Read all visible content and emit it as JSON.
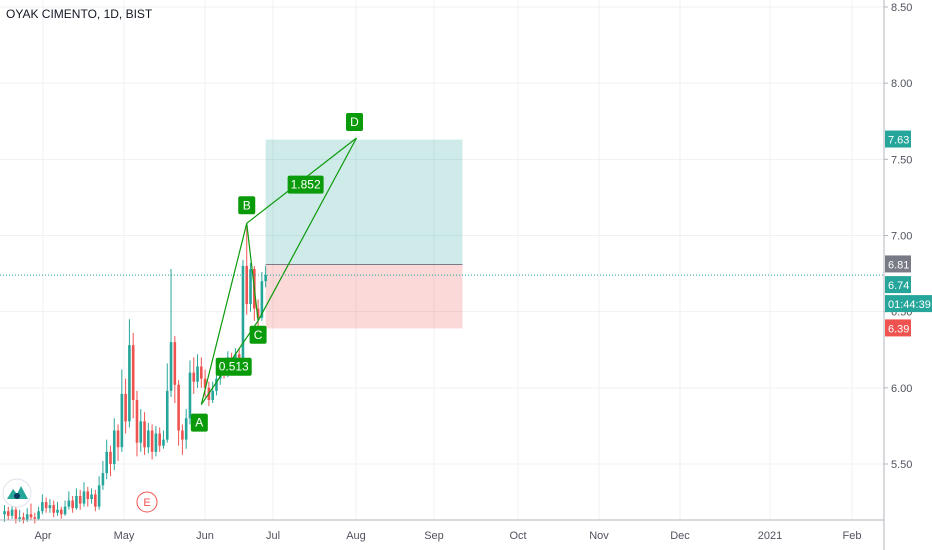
{
  "header": {
    "symbol_label": "OYAK CIMENTO, 1D, BIST"
  },
  "colors": {
    "up": "#26a69a",
    "down": "#ef5350",
    "grid": "#eef0f3",
    "axis_text": "#50535e",
    "pattern": "#0b9a0b",
    "profit_zone": "rgba(38,166,154,0.22)",
    "loss_zone": "rgba(239,83,80,0.22)",
    "last_line": "#26a69a",
    "entry_tag": "#787b86",
    "target_tag": "#26a69a",
    "stop_tag": "#ef5350",
    "timer_tag": "#26a69a"
  },
  "chart_data": {
    "type": "candlestick",
    "x_ticks": [
      "Apr",
      "May",
      "Jun",
      "Jul",
      "Aug",
      "Sep",
      "Oct",
      "Nov",
      "Dec",
      "2021",
      "Feb"
    ],
    "y_ticks": [
      "8.50",
      "8.00",
      "7.50",
      "7.00",
      "6.50",
      "6.00",
      "5.50"
    ],
    "ylim": [
      5.1,
      8.55
    ],
    "candles": [
      {
        "o": 5.17,
        "c": 5.19,
        "h": 5.23,
        "l": 5.12
      },
      {
        "o": 5.19,
        "c": 5.16,
        "h": 5.22,
        "l": 5.13
      },
      {
        "o": 5.16,
        "c": 5.2,
        "h": 5.25,
        "l": 5.14
      },
      {
        "o": 5.2,
        "c": 5.14,
        "h": 5.22,
        "l": 5.11
      },
      {
        "o": 5.14,
        "c": 5.15,
        "h": 5.2,
        "l": 5.12
      },
      {
        "o": 5.15,
        "c": 5.13,
        "h": 5.18,
        "l": 5.11
      },
      {
        "o": 5.13,
        "c": 5.17,
        "h": 5.21,
        "l": 5.12
      },
      {
        "o": 5.17,
        "c": 5.15,
        "h": 5.24,
        "l": 5.13
      },
      {
        "o": 5.15,
        "c": 5.14,
        "h": 5.18,
        "l": 5.11
      },
      {
        "o": 5.14,
        "c": 5.19,
        "h": 5.22,
        "l": 5.13
      },
      {
        "o": 5.19,
        "c": 5.25,
        "h": 5.3,
        "l": 5.17
      },
      {
        "o": 5.25,
        "c": 5.21,
        "h": 5.28,
        "l": 5.18
      },
      {
        "o": 5.21,
        "c": 5.23,
        "h": 5.27,
        "l": 5.18
      },
      {
        "o": 5.23,
        "c": 5.18,
        "h": 5.26,
        "l": 5.15
      },
      {
        "o": 5.18,
        "c": 5.2,
        "h": 5.25,
        "l": 5.16
      },
      {
        "o": 5.2,
        "c": 5.17,
        "h": 5.22,
        "l": 5.14
      },
      {
        "o": 5.17,
        "c": 5.22,
        "h": 5.26,
        "l": 5.16
      },
      {
        "o": 5.22,
        "c": 5.26,
        "h": 5.32,
        "l": 5.2
      },
      {
        "o": 5.26,
        "c": 5.21,
        "h": 5.29,
        "l": 5.18
      },
      {
        "o": 5.21,
        "c": 5.29,
        "h": 5.34,
        "l": 5.2
      },
      {
        "o": 5.29,
        "c": 5.24,
        "h": 5.33,
        "l": 5.2
      },
      {
        "o": 5.24,
        "c": 5.32,
        "h": 5.38,
        "l": 5.22
      },
      {
        "o": 5.32,
        "c": 5.27,
        "h": 5.35,
        "l": 5.22
      },
      {
        "o": 5.27,
        "c": 5.3,
        "h": 5.34,
        "l": 5.24
      },
      {
        "o": 5.3,
        "c": 5.22,
        "h": 5.33,
        "l": 5.19
      },
      {
        "o": 5.22,
        "c": 5.36,
        "h": 5.42,
        "l": 5.2
      },
      {
        "o": 5.36,
        "c": 5.44,
        "h": 5.52,
        "l": 5.33
      },
      {
        "o": 5.44,
        "c": 5.58,
        "h": 5.66,
        "l": 5.4
      },
      {
        "o": 5.58,
        "c": 5.5,
        "h": 5.62,
        "l": 5.42
      },
      {
        "o": 5.5,
        "c": 5.72,
        "h": 5.8,
        "l": 5.46
      },
      {
        "o": 5.72,
        "c": 5.61,
        "h": 5.76,
        "l": 5.52
      },
      {
        "o": 5.61,
        "c": 5.96,
        "h": 6.12,
        "l": 5.58
      },
      {
        "o": 5.96,
        "c": 5.78,
        "h": 6.06,
        "l": 5.7
      },
      {
        "o": 5.78,
        "c": 6.28,
        "h": 6.45,
        "l": 5.74
      },
      {
        "o": 6.28,
        "c": 5.92,
        "h": 6.36,
        "l": 5.8
      },
      {
        "o": 5.92,
        "c": 5.64,
        "h": 5.98,
        "l": 5.55
      },
      {
        "o": 5.64,
        "c": 5.78,
        "h": 5.86,
        "l": 5.58
      },
      {
        "o": 5.78,
        "c": 5.61,
        "h": 5.84,
        "l": 5.56
      },
      {
        "o": 5.61,
        "c": 5.72,
        "h": 5.77,
        "l": 5.57
      },
      {
        "o": 5.72,
        "c": 5.58,
        "h": 5.76,
        "l": 5.53
      },
      {
        "o": 5.58,
        "c": 5.7,
        "h": 5.75,
        "l": 5.55
      },
      {
        "o": 5.7,
        "c": 5.62,
        "h": 5.74,
        "l": 5.58
      },
      {
        "o": 5.62,
        "c": 5.66,
        "h": 5.72,
        "l": 5.6
      },
      {
        "o": 5.66,
        "c": 5.98,
        "h": 6.16,
        "l": 5.64
      },
      {
        "o": 5.98,
        "c": 6.3,
        "h": 6.78,
        "l": 5.94
      },
      {
        "o": 6.3,
        "c": 6.02,
        "h": 6.34,
        "l": 5.9
      },
      {
        "o": 6.02,
        "c": 5.72,
        "h": 6.05,
        "l": 5.62
      },
      {
        "o": 5.72,
        "c": 5.66,
        "h": 5.76,
        "l": 5.56
      },
      {
        "o": 5.66,
        "c": 5.8,
        "h": 5.86,
        "l": 5.6
      },
      {
        "o": 5.8,
        "c": 6.1,
        "h": 6.18,
        "l": 5.76
      },
      {
        "o": 6.1,
        "c": 6.04,
        "h": 6.2,
        "l": 5.96
      },
      {
        "o": 6.04,
        "c": 6.14,
        "h": 6.22,
        "l": 6.0
      },
      {
        "o": 6.14,
        "c": 6.06,
        "h": 6.2,
        "l": 6.0
      },
      {
        "o": 6.06,
        "c": 6.0,
        "h": 6.12,
        "l": 5.94
      },
      {
        "o": 6.0,
        "c": 5.92,
        "h": 6.04,
        "l": 5.88
      },
      {
        "o": 5.92,
        "c": 5.98,
        "h": 6.04,
        "l": 5.9
      },
      {
        "o": 5.98,
        "c": 6.06,
        "h": 6.1,
        "l": 5.95
      },
      {
        "o": 6.06,
        "c": 6.12,
        "h": 6.18,
        "l": 6.02
      },
      {
        "o": 6.12,
        "c": 6.1,
        "h": 6.16,
        "l": 6.06
      },
      {
        "o": 6.1,
        "c": 6.2,
        "h": 6.24,
        "l": 6.07
      },
      {
        "o": 6.2,
        "c": 6.14,
        "h": 6.23,
        "l": 6.09
      },
      {
        "o": 6.14,
        "c": 6.22,
        "h": 6.26,
        "l": 6.1
      },
      {
        "o": 6.22,
        "c": 6.18,
        "h": 6.26,
        "l": 6.12
      },
      {
        "o": 6.18,
        "c": 6.8,
        "h": 6.84,
        "l": 6.16
      },
      {
        "o": 6.8,
        "c": 6.55,
        "h": 7.08,
        "l": 6.48
      },
      {
        "o": 6.55,
        "c": 6.78,
        "h": 6.82,
        "l": 6.5
      },
      {
        "o": 6.78,
        "c": 6.52,
        "h": 6.8,
        "l": 6.44
      },
      {
        "o": 6.52,
        "c": 6.46,
        "h": 6.58,
        "l": 6.4
      },
      {
        "o": 6.46,
        "c": 6.7,
        "h": 6.76,
        "l": 6.44
      },
      {
        "o": 6.7,
        "c": 6.74,
        "h": 6.8,
        "l": 6.66
      }
    ],
    "pattern": {
      "points": [
        {
          "label": "A",
          "x_index": 52,
          "price": 5.89
        },
        {
          "label": "B",
          "x_index": 64,
          "price": 7.08
        },
        {
          "label": "C",
          "x_index": 67,
          "price": 6.44
        },
        {
          "label": "D",
          "x_index": 93,
          "price": 7.64
        }
      ],
      "ratios": [
        {
          "value": "0.513",
          "legs": [
            "A",
            "C"
          ]
        },
        {
          "value": "1.852",
          "legs": [
            "B",
            "D"
          ]
        }
      ]
    },
    "position": {
      "entry": 6.81,
      "target": 7.63,
      "stop": 6.39,
      "x_start_index": 69,
      "x_end_index": 121
    },
    "last_price": 6.74,
    "countdown": "01:44:39",
    "price_tags": [
      {
        "value": "7.63",
        "kind": "target"
      },
      {
        "value": "6.81",
        "kind": "entry"
      },
      {
        "value": "6.74",
        "kind": "last"
      },
      {
        "value": "01:44:39",
        "kind": "timer"
      },
      {
        "value": "6.39",
        "kind": "stop"
      }
    ],
    "event_marker": "E"
  }
}
